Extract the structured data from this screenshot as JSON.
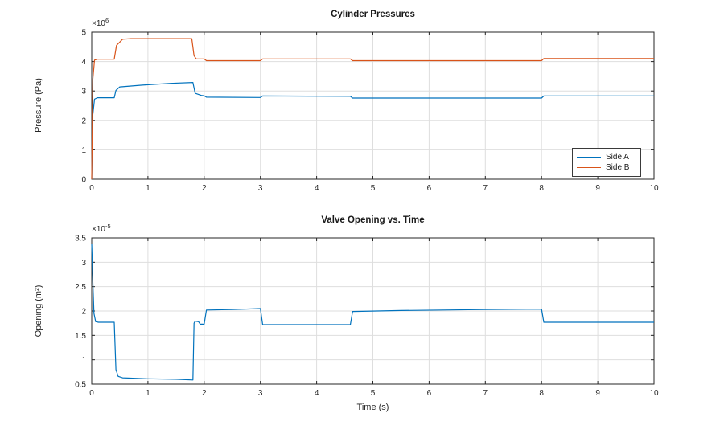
{
  "figure": {
    "background": "#ffffff",
    "axis_color": "#262626",
    "grid_color": "#dedede",
    "tick_label_color": "#262626"
  },
  "chart_data": [
    {
      "type": "line",
      "title": "Cylinder Pressures",
      "xlabel": "",
      "ylabel": "Pressure (Pa)",
      "y_exponent": {
        "base": "×10",
        "sup": "6"
      },
      "y_unit_multiplier": 1000000,
      "xlim": [
        0,
        10
      ],
      "ylim": [
        0,
        5
      ],
      "xticks": [
        0,
        1,
        2,
        3,
        4,
        5,
        6,
        7,
        8,
        9,
        10
      ],
      "yticks": [
        0,
        1,
        2,
        3,
        4,
        5
      ],
      "grid": true,
      "legend": {
        "position": "southeast",
        "entries": [
          "Side A",
          "Side B"
        ]
      },
      "series": [
        {
          "name": "Side A",
          "color": "#0072BD",
          "points": [
            [
              0,
              0
            ],
            [
              0.02,
              2.2
            ],
            [
              0.05,
              2.72
            ],
            [
              0.1,
              2.77
            ],
            [
              0.4,
              2.77
            ],
            [
              0.43,
              3.02
            ],
            [
              0.5,
              3.14
            ],
            [
              0.9,
              3.2
            ],
            [
              1.4,
              3.26
            ],
            [
              1.8,
              3.29
            ],
            [
              1.84,
              2.92
            ],
            [
              1.95,
              2.85
            ],
            [
              2.0,
              2.84
            ],
            [
              2.04,
              2.79
            ],
            [
              3.0,
              2.78
            ],
            [
              3.04,
              2.83
            ],
            [
              4.6,
              2.82
            ],
            [
              4.64,
              2.76
            ],
            [
              8.0,
              2.76
            ],
            [
              8.04,
              2.83
            ],
            [
              10,
              2.83
            ]
          ]
        },
        {
          "name": "Side B",
          "color": "#D95319",
          "points": [
            [
              0,
              0
            ],
            [
              0.02,
              3.4
            ],
            [
              0.05,
              4.05
            ],
            [
              0.1,
              4.08
            ],
            [
              0.4,
              4.08
            ],
            [
              0.44,
              4.55
            ],
            [
              0.55,
              4.76
            ],
            [
              0.7,
              4.78
            ],
            [
              1.78,
              4.78
            ],
            [
              1.82,
              4.2
            ],
            [
              1.86,
              4.09
            ],
            [
              2.0,
              4.09
            ],
            [
              2.04,
              4.03
            ],
            [
              3.0,
              4.03
            ],
            [
              3.04,
              4.09
            ],
            [
              4.6,
              4.09
            ],
            [
              4.64,
              4.03
            ],
            [
              8.0,
              4.03
            ],
            [
              8.04,
              4.1
            ],
            [
              10,
              4.1
            ]
          ]
        }
      ]
    },
    {
      "type": "line",
      "title": "Valve Opening vs. Time",
      "xlabel": "Time (s)",
      "ylabel": "Opening (m²)",
      "y_exponent": {
        "base": "×10",
        "sup": "-5"
      },
      "y_unit_multiplier": 1e-05,
      "xlim": [
        0,
        10
      ],
      "ylim": [
        0.5,
        3.5
      ],
      "xticks": [
        0,
        1,
        2,
        3,
        4,
        5,
        6,
        7,
        8,
        9,
        10
      ],
      "yticks": [
        0.5,
        1,
        1.5,
        2,
        2.5,
        3,
        3.5
      ],
      "grid": true,
      "legend": null,
      "series": [
        {
          "name": "Opening",
          "color": "#0072BD",
          "points": [
            [
              0,
              3.38
            ],
            [
              0.02,
              2.6
            ],
            [
              0.04,
              1.95
            ],
            [
              0.07,
              1.78
            ],
            [
              0.12,
              1.77
            ],
            [
              0.4,
              1.77
            ],
            [
              0.43,
              0.8
            ],
            [
              0.47,
              0.66
            ],
            [
              0.55,
              0.63
            ],
            [
              1.0,
              0.61
            ],
            [
              1.5,
              0.6
            ],
            [
              1.8,
              0.585
            ],
            [
              1.82,
              1.75
            ],
            [
              1.84,
              1.79
            ],
            [
              1.9,
              1.78
            ],
            [
              1.93,
              1.73
            ],
            [
              2.0,
              1.73
            ],
            [
              2.04,
              2.02
            ],
            [
              2.5,
              2.03
            ],
            [
              3.0,
              2.05
            ],
            [
              3.04,
              1.72
            ],
            [
              4.6,
              1.72
            ],
            [
              4.64,
              1.99
            ],
            [
              5.5,
              2.01
            ],
            [
              7.0,
              2.03
            ],
            [
              8.0,
              2.04
            ],
            [
              8.04,
              1.77
            ],
            [
              10,
              1.77
            ]
          ]
        }
      ]
    }
  ]
}
